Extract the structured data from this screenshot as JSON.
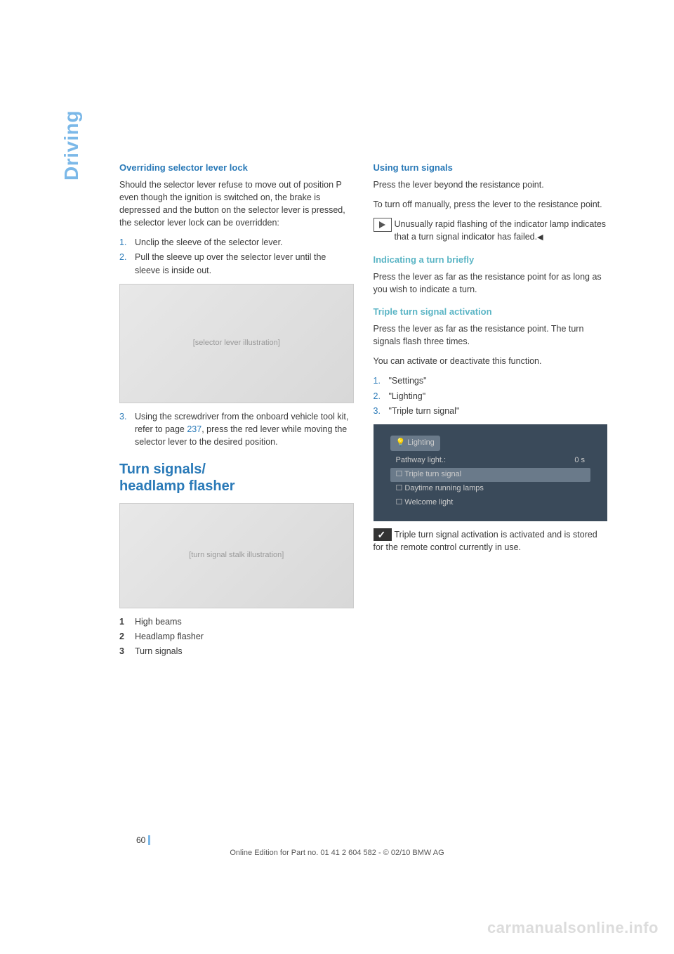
{
  "sidebar": {
    "label": "Driving"
  },
  "left": {
    "h_override": "Overriding selector lever lock",
    "p_override": "Should the selector lever refuse to move out of position P even though the ignition is switched on, the brake is depressed and the button on the selector lever is pressed, the selector lever lock can be overridden:",
    "steps_a": [
      "Unclip the sleeve of the selector lever.",
      "Pull the sleeve up over the selector lever until the sleeve is inside out."
    ],
    "img1_alt": "[selector lever illustration]",
    "step3_pre": "Using the screwdriver from the onboard vehicle tool kit, refer to page ",
    "step3_link": "237",
    "step3_post": ", press the red lever while moving the selector lever to the desired position.",
    "h_turn": "Turn signals/\nheadlamp flasher",
    "img2_alt": "[turn signal stalk illustration]",
    "legend": [
      "High beams",
      "Headlamp flasher",
      "Turn signals"
    ]
  },
  "right": {
    "h_using": "Using turn signals",
    "p_using1": "Press the lever beyond the resistance point.",
    "p_using2": "To turn off manually, press the lever to the resistance point.",
    "note_flash": "Unusually rapid flashing of the indicator lamp indicates that a turn signal indicator has failed.",
    "h_brief": "Indicating a turn briefly",
    "p_brief": "Press the lever as far as the resistance point for as long as you wish to indicate a turn.",
    "h_triple": "Triple turn signal activation",
    "p_triple1": "Press the lever as far as the resistance point. The turn signals flash three times.",
    "p_triple2": "You can activate or deactivate this function.",
    "steps_b": [
      "\"Settings\"",
      "\"Lighting\"",
      "\"Triple turn signal\""
    ],
    "screen": {
      "title": "Lighting",
      "row_path_label": "Pathway light.:",
      "row_path_val": "0 s",
      "row_triple": "Triple turn signal",
      "row_drl": "Daytime running lamps",
      "row_welcome": "Welcome light"
    },
    "p_stored": "Triple turn signal activation is activated and is stored for the remote control currently in use."
  },
  "page_number": "60",
  "footer": "Online Edition for Part no. 01 41 2 604 582 - © 02/10 BMW AG",
  "watermark": "carmanualsonline.info"
}
